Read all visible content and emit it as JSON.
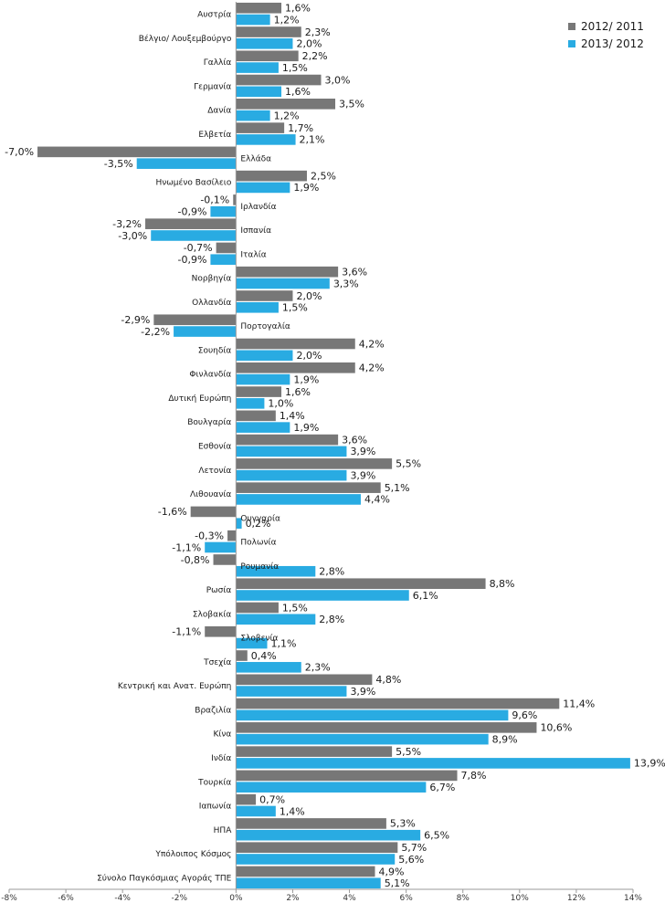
{
  "chart_data": {
    "type": "bar",
    "orientation": "horizontal",
    "colors": [
      "#777777",
      "#29abe2"
    ],
    "legend_position": "top-right",
    "xlim": [
      -8,
      14
    ],
    "xticks": [
      "-8%",
      "-6%",
      "-4%",
      "-2%",
      "0%",
      "2%",
      "4%",
      "6%",
      "8%",
      "10%",
      "12%",
      "14%"
    ],
    "grid": false,
    "categories": [
      "Αυστρία",
      "Βέλγιο/ Λουξεμβούργο",
      "Γαλλία",
      "Γερμανία",
      "Δανία",
      "Ελβετία",
      "Ελλάδα",
      "Ηνωμένο Βασίλειο",
      "Ιρλανδία",
      "Ισπανία",
      "Ιταλία",
      "Νορβηγία",
      "Ολλανδία",
      "Πορτογαλία",
      "Σουηδία",
      "Φινλανδία",
      "Δυτική Ευρώπη",
      "Βουλγαρία",
      "Εσθονία",
      "Λετονία",
      "Λιθουανία",
      "Ουγγαρία",
      "Πολωνία",
      "Ρουμανία",
      "Ρωσία",
      "Σλοβακία",
      "Σλοβενία",
      "Τσεχία",
      "Κεντρική και Ανατ. Ευρώπη",
      "Βραζιλία",
      "Κίνα",
      "Ινδία",
      "Τουρκία",
      "Ιαπωνία",
      "ΗΠΑ",
      "Υπόλοιπος Κόσμος",
      "Σύνολο Παγκόσμιας Αγοράς ΤΠΕ"
    ],
    "series": [
      {
        "name": "2012/ 2011",
        "values": [
          1.6,
          2.3,
          2.2,
          3.0,
          3.5,
          1.7,
          -7.0,
          2.5,
          -0.1,
          -3.2,
          -0.7,
          3.6,
          2.0,
          -2.9,
          4.2,
          4.2,
          1.6,
          1.4,
          3.6,
          5.5,
          5.1,
          -1.6,
          -0.3,
          -0.8,
          8.8,
          1.5,
          -1.1,
          0.4,
          4.8,
          11.4,
          10.6,
          5.5,
          7.8,
          0.7,
          5.3,
          5.7,
          4.9
        ],
        "labels": [
          "1,6%",
          "2,3%",
          "2,2%",
          "3,0%",
          "3,5%",
          "1,7%",
          "-7,0%",
          "2,5%",
          "-0,1%",
          "-3,2%",
          "-0,7%",
          "3,6%",
          "2,0%",
          "-2,9%",
          "4,2%",
          "4,2%",
          "1,6%",
          "1,4%",
          "3,6%",
          "5,5%",
          "5,1%",
          "-1,6%",
          "-0,3%",
          "-0,8%",
          "8,8%",
          "1,5%",
          "-1,1%",
          "0,4%",
          "4,8%",
          "11,4%",
          "10,6%",
          "5,5%",
          "7,8%",
          "0,7%",
          "5,3%",
          "5,7%",
          "4,9%"
        ]
      },
      {
        "name": "2013/ 2012",
        "values": [
          1.2,
          2.0,
          1.5,
          1.6,
          1.2,
          2.1,
          -3.5,
          1.9,
          -0.9,
          -3.0,
          -0.9,
          3.3,
          1.5,
          -2.2,
          2.0,
          1.9,
          1.0,
          1.9,
          3.9,
          3.9,
          4.4,
          0.2,
          -1.1,
          2.8,
          6.1,
          2.8,
          1.1,
          2.3,
          3.9,
          9.6,
          8.9,
          13.9,
          6.7,
          1.4,
          6.5,
          5.6,
          5.1
        ],
        "labels": [
          "1,2%",
          "2,0%",
          "1,5%",
          "1,6%",
          "1,2%",
          "2,1%",
          "-3,5%",
          "1,9%",
          "-0,9%",
          "-3,0%",
          "-0,9%",
          "3,3%",
          "1,5%",
          "-2,2%",
          "2,0%",
          "1,9%",
          "1,0%",
          "1,9%",
          "3,9%",
          "3,9%",
          "4,4%",
          "0,2%",
          "-1,1%",
          "2,8%",
          "6,1%",
          "2,8%",
          "1,1%",
          "2,3%",
          "3,9%",
          "9,6%",
          "8,9%",
          "13,9%",
          "6,7%",
          "1,4%",
          "6,5%",
          "5,6%",
          "5,1%"
        ]
      }
    ]
  }
}
